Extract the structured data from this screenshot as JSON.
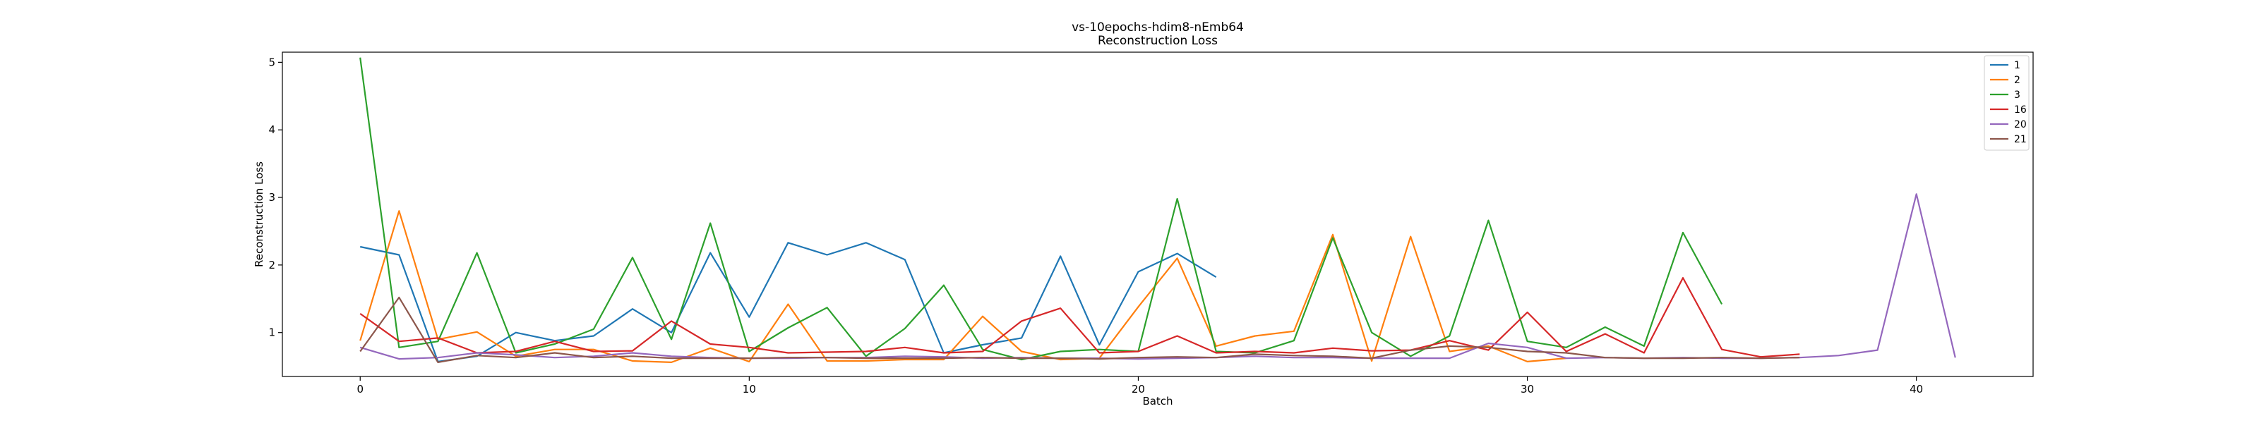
{
  "chart_data": {
    "type": "line",
    "title": "vs-10epochs-hdim8-nEmb64",
    "subtitle": "Reconstruction Loss",
    "xlabel": "Batch",
    "ylabel": "Reconstruction Loss",
    "xlim": [
      -2,
      43
    ],
    "ylim": [
      0.35,
      5.15
    ],
    "xticks": [
      0,
      10,
      20,
      30,
      40
    ],
    "yticks": [
      1,
      2,
      3,
      4,
      5
    ],
    "grid": false,
    "legend_position": "top-right",
    "series": [
      {
        "name": "1",
        "color": "#1f77b4",
        "values": [
          2.27,
          2.15,
          0.57,
          0.65,
          1.0,
          0.88,
          0.95,
          1.35,
          1.0,
          2.18,
          1.23,
          2.33,
          2.15,
          2.33,
          2.08,
          0.7,
          0.82,
          0.92,
          2.13,
          0.82,
          1.9,
          2.17,
          1.82
        ]
      },
      {
        "name": "2",
        "color": "#ff7f0e",
        "values": [
          0.88,
          2.8,
          0.9,
          1.01,
          0.65,
          0.75,
          0.75,
          0.58,
          0.56,
          0.77,
          0.57,
          1.42,
          0.58,
          0.58,
          0.6,
          0.6,
          1.24,
          0.72,
          0.6,
          0.62,
          1.38,
          2.1,
          0.8,
          0.95,
          1.02,
          2.45,
          0.58,
          2.42,
          0.72,
          0.8,
          0.57,
          0.62
        ]
      },
      {
        "name": "3",
        "color": "#2ca02c",
        "values": [
          5.07,
          0.78,
          0.87,
          2.18,
          0.7,
          0.83,
          1.05,
          2.11,
          0.9,
          2.62,
          0.72,
          1.07,
          1.37,
          0.65,
          1.06,
          1.7,
          0.75,
          0.6,
          0.72,
          0.75,
          0.72,
          2.98,
          0.72,
          0.7,
          0.88,
          2.4,
          1.0,
          0.65,
          0.95,
          2.66,
          0.87,
          0.78,
          1.08,
          0.8,
          2.48,
          1.42
        ]
      },
      {
        "name": "16",
        "color": "#d62728",
        "values": [
          1.28,
          0.87,
          0.92,
          0.7,
          0.72,
          0.87,
          0.72,
          0.73,
          1.17,
          0.83,
          0.78,
          0.7,
          0.71,
          0.72,
          0.78,
          0.7,
          0.72,
          1.17,
          1.36,
          0.7,
          0.72,
          0.95,
          0.7,
          0.72,
          0.7,
          0.77,
          0.73,
          0.74,
          0.88,
          0.74,
          1.3,
          0.72,
          0.98,
          0.7,
          1.81,
          0.75,
          0.64,
          0.68
        ]
      },
      {
        "name": "20",
        "color": "#9467bd",
        "values": [
          0.78,
          0.61,
          0.63,
          0.7,
          0.67,
          0.63,
          0.65,
          0.7,
          0.65,
          0.63,
          0.62,
          0.62,
          0.63,
          0.63,
          0.65,
          0.64,
          0.62,
          0.63,
          0.62,
          0.62,
          0.61,
          0.62,
          0.63,
          0.65,
          0.63,
          0.63,
          0.62,
          0.62,
          0.62,
          0.84,
          0.78,
          0.62,
          0.63,
          0.62,
          0.63,
          0.62,
          0.62,
          0.63,
          0.66,
          0.74,
          3.05,
          0.63
        ]
      },
      {
        "name": "21",
        "color": "#8c564b",
        "values": [
          0.72,
          1.52,
          0.56,
          0.66,
          0.63,
          0.7,
          0.63,
          0.65,
          0.62,
          0.62,
          0.62,
          0.63,
          0.63,
          0.62,
          0.62,
          0.62,
          0.63,
          0.62,
          0.62,
          0.61,
          0.63,
          0.64,
          0.63,
          0.68,
          0.66,
          0.65,
          0.62,
          0.74,
          0.8,
          0.78,
          0.72,
          0.7,
          0.63,
          0.62,
          0.62,
          0.63,
          0.62,
          0.63
        ]
      }
    ]
  }
}
